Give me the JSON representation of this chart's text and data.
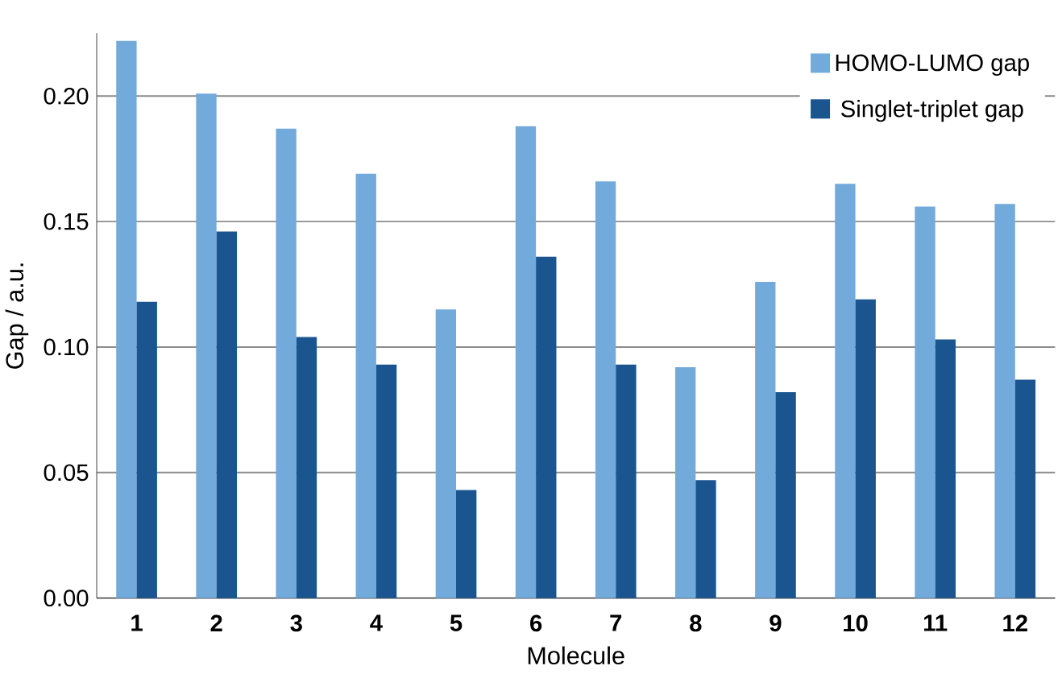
{
  "chart_data": {
    "type": "bar",
    "xlabel": "Molecule",
    "ylabel": "Gap / a.u.",
    "categories": [
      "1",
      "2",
      "3",
      "4",
      "5",
      "6",
      "7",
      "8",
      "9",
      "10",
      "11",
      "12"
    ],
    "series": [
      {
        "name": "HOMO-LUMO gap",
        "color": "#72aadc",
        "values": [
          0.222,
          0.201,
          0.187,
          0.169,
          0.115,
          0.188,
          0.166,
          0.092,
          0.126,
          0.165,
          0.156,
          0.157
        ]
      },
      {
        "name": "Singlet-triplet gap",
        "color": "#1b5590",
        "values": [
          0.118,
          0.146,
          0.104,
          0.093,
          0.043,
          0.136,
          0.093,
          0.047,
          0.082,
          0.119,
          0.103,
          0.087
        ]
      }
    ],
    "ylim": [
      0,
      0.225
    ],
    "yticks": [
      {
        "value": 0,
        "label": "0.00"
      },
      {
        "value": 0.05,
        "label": "0.05"
      },
      {
        "value": 0.1,
        "label": "0.10"
      },
      {
        "value": 0.15,
        "label": "0.15"
      },
      {
        "value": 0.2,
        "label": "0.20"
      }
    ],
    "grid": "y",
    "legend": "top right"
  }
}
